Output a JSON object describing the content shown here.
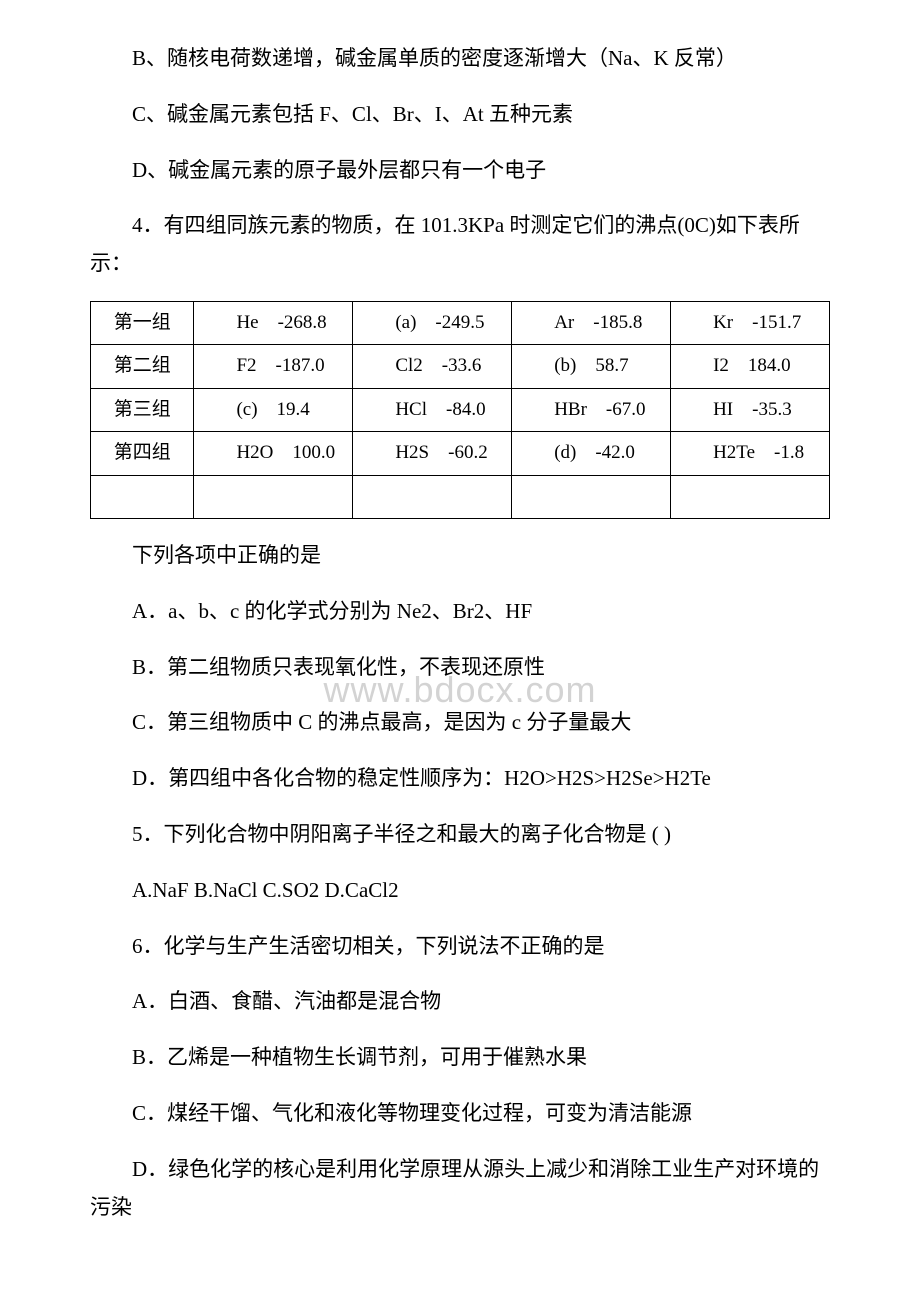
{
  "watermark": "www.bdocx.com",
  "p1": "B、随核电荷数递增，碱金属单质的密度逐渐增大（Na、K 反常）",
  "p2": "C、碱金属元素包括 F、Cl、Br、I、At 五种元素",
  "p3": "D、碱金属元素的原子最外层都只有一个电子",
  "p4": "4．有四组同族元素的物质，在 101.3KPa 时测定它们的沸点(0C)如下表所示：",
  "table": {
    "rows": [
      {
        "label": "第一组",
        "c1": "He　-268.8",
        "c2": "(a)　-249.5",
        "c3": "Ar　-185.8",
        "c4": "Kr　-151.7"
      },
      {
        "label": "第二组",
        "c1": "F2　-187.0",
        "c2": "Cl2　-33.6",
        "c3": "(b)　58.7",
        "c4": "I2　184.0"
      },
      {
        "label": "第三组",
        "c1": "(c)　19.4",
        "c2": "HCl　-84.0",
        "c3": "HBr　-67.0",
        "c4": "HI　-35.3"
      },
      {
        "label": "第四组",
        "c1": "H2O　100.0",
        "c2": "H2S　-60.2",
        "c3": "(d)　-42.0",
        "c4": "H2Te　-1.8"
      }
    ]
  },
  "p5": "下列各项中正确的是",
  "p6": "A．a、b、c 的化学式分别为 Ne2、Br2、HF",
  "p7": "B．第二组物质只表现氧化性，不表现还原性",
  "p8": "C．第三组物质中 C 的沸点最高，是因为 c 分子量最大",
  "p9": "D．第四组中各化合物的稳定性顺序为：H2O>H2S>H2Se>H2Te",
  "p10": "5．下列化合物中阴阳离子半径之和最大的离子化合物是 ( )",
  "p11": "A.NaF B.NaCl C.SO2 D.CaCl2",
  "p12": "6．化学与生产生活密切相关，下列说法不正确的是",
  "p13": "A．白酒、食醋、汽油都是混合物",
  "p14": "B．乙烯是一种植物生长调节剂，可用于催熟水果",
  "p15": "C．煤经干馏、气化和液化等物理变化过程，可变为清洁能源",
  "p16": "D．绿色化学的核心是利用化学原理从源头上减少和消除工业生产对环境的污染"
}
